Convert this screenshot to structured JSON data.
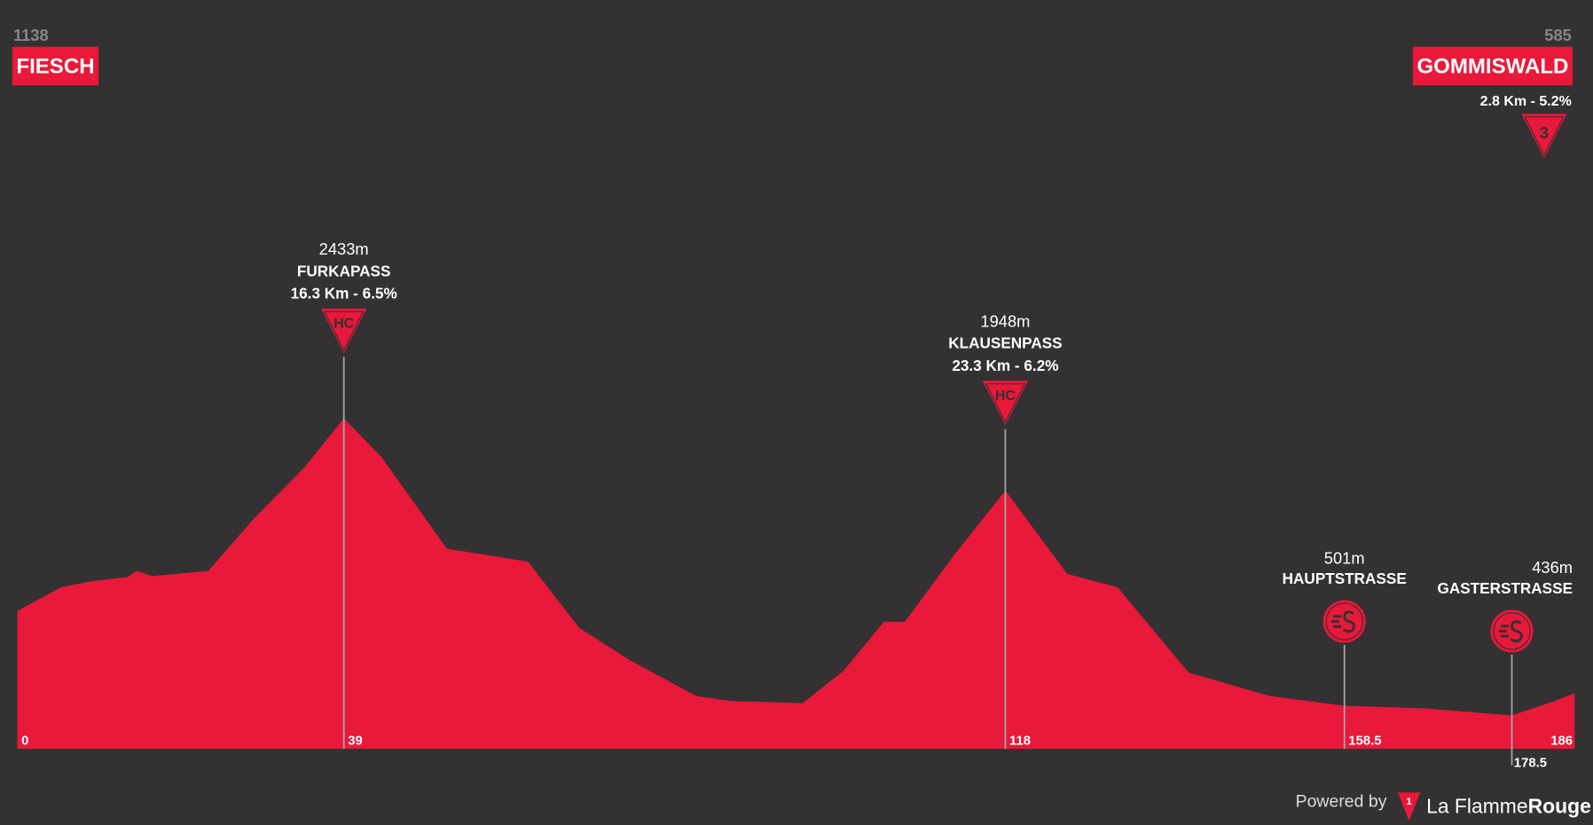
{
  "chart_data": {
    "type": "area",
    "color": "#e8193a",
    "x": [
      0,
      5.2,
      8.9,
      13.1,
      14.3,
      16.1,
      22.8,
      28.3,
      34.3,
      39,
      43.5,
      51.3,
      57.4,
      61,
      67.1,
      73.2,
      81.1,
      85.3,
      93.8,
      98.7,
      103.5,
      106,
      112,
      118,
      125.4,
      131.4,
      139.9,
      149.6,
      158.5,
      167.8,
      178.5,
      183.6,
      186
    ],
    "values": [
      1138,
      1298,
      1339,
      1366,
      1407,
      1373,
      1407,
      1762,
      2104,
      2433,
      2172,
      1557,
      1503,
      1469,
      1025,
      806,
      567,
      533,
      519,
      738,
      1066,
      1066,
      1523,
      1948,
      1387,
      1298,
      724,
      567,
      501,
      485,
      436,
      533,
      585
    ],
    "xlim": [
      0,
      186
    ],
    "ylim": [
      212,
      2650
    ],
    "xticks": [
      0,
      39,
      118,
      158.5,
      178.5,
      186
    ],
    "start": {
      "elevation": 1138,
      "name": "FIESCH"
    },
    "finish": {
      "elevation": 585,
      "name": "GOMMISWALD",
      "info": "2.8 Km - 5.2%",
      "category": "3"
    },
    "climbs": [
      {
        "x": 39,
        "elevation": 2433,
        "elevation_label": "2433m",
        "name": "FURKAPASS",
        "info": "16.3 Km - 6.5%",
        "category": "HC"
      },
      {
        "x": 118,
        "elevation": 1948,
        "elevation_label": "1948m",
        "name": "KLAUSENPASS",
        "info": "23.3 Km - 6.2%",
        "category": "HC"
      }
    ],
    "sprints": [
      {
        "x": 158.5,
        "elevation": 501,
        "elevation_label": "501m",
        "name": "HAUPTSTRASSE"
      },
      {
        "x": 178.5,
        "elevation": 436,
        "elevation_label": "436m",
        "name": "GASTERSTRASSE"
      }
    ]
  },
  "footer": {
    "powered": "Powered by",
    "logo": "1",
    "brand_a": "La Flamme",
    "brand_b": "Rouge"
  }
}
